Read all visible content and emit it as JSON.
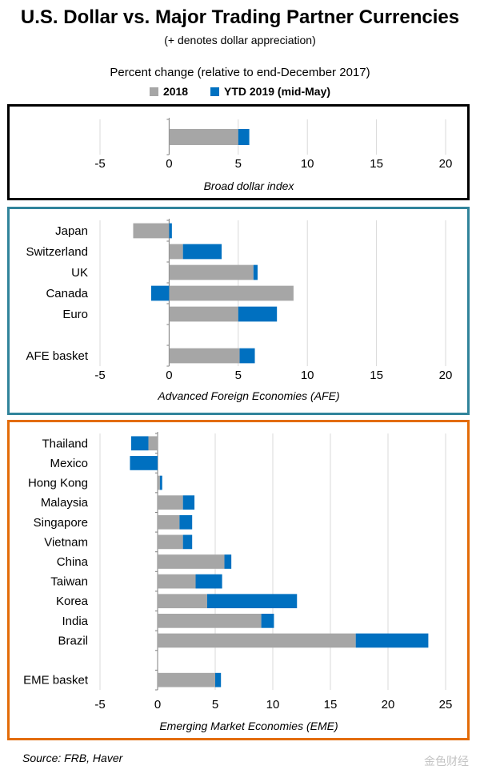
{
  "title": "U.S. Dollar vs. Major Trading Partner Currencies",
  "subtitle": "(+ denotes dollar appreciation)",
  "caption": "Percent change (relative to end-December 2017)",
  "legend": [
    {
      "label": "2018",
      "color": "#a6a6a6"
    },
    {
      "label": "YTD 2019 (mid-May)",
      "color": "#0070c0"
    }
  ],
  "source": "Source: FRB, Haver",
  "watermark": "金色财经",
  "colors": {
    "s2018": "#a6a6a6",
    "s2019": "#0070c0",
    "grid": "#d9d9d9"
  },
  "chart_data": [
    {
      "type": "bar",
      "orientation": "horizontal",
      "stacked": true,
      "title": "Broad dollar index",
      "border_color": "#000000",
      "categories": [
        ""
      ],
      "series": [
        {
          "name": "2018",
          "values": [
            5.0
          ]
        },
        {
          "name": "YTD 2019 (mid-May)",
          "values": [
            0.8
          ]
        }
      ],
      "xlim": [
        -5,
        20
      ],
      "xticks": [
        "-5",
        "0",
        "5",
        "10",
        "15",
        "20"
      ],
      "grid": true
    },
    {
      "type": "bar",
      "orientation": "horizontal",
      "stacked": true,
      "title": "Advanced Foreign Economies (AFE)",
      "border_color": "#31849b",
      "categories": [
        "Japan",
        "Switzerland",
        "UK",
        "Canada",
        "Euro",
        "",
        "AFE basket"
      ],
      "series": [
        {
          "name": "2018",
          "values": [
            -2.6,
            1.0,
            6.1,
            9.0,
            5.0,
            null,
            5.1
          ]
        },
        {
          "name": "YTD 2019 (mid-May)",
          "values": [
            0.2,
            2.8,
            0.3,
            -1.3,
            2.8,
            null,
            1.1
          ]
        }
      ],
      "xlim": [
        -5,
        20
      ],
      "xticks": [
        "-5",
        "0",
        "5",
        "10",
        "15",
        "20"
      ],
      "grid": true
    },
    {
      "type": "bar",
      "orientation": "horizontal",
      "stacked": true,
      "title": "Emerging Market Economies (EME)",
      "border_color": "#e36c09",
      "categories": [
        "Thailand",
        "Mexico",
        "Hong Kong",
        "Malaysia",
        "Singapore",
        "Vietnam",
        "China",
        "Taiwan",
        "Korea",
        "India",
        "Brazil",
        "",
        "EME basket"
      ],
      "series": [
        {
          "name": "2018",
          "values": [
            -0.8,
            0.0,
            0.2,
            2.2,
            1.9,
            2.2,
            5.8,
            3.3,
            4.3,
            9.0,
            17.2,
            null,
            5.0
          ]
        },
        {
          "name": "YTD 2019 (mid-May)",
          "values": [
            -1.5,
            -2.4,
            0.2,
            1.0,
            1.1,
            0.8,
            0.6,
            2.3,
            7.8,
            1.1,
            6.3,
            null,
            0.5
          ]
        }
      ],
      "xlim": [
        -5,
        25
      ],
      "xticks": [
        "-5",
        "0",
        "5",
        "10",
        "15",
        "20",
        "25"
      ],
      "grid": true
    }
  ]
}
